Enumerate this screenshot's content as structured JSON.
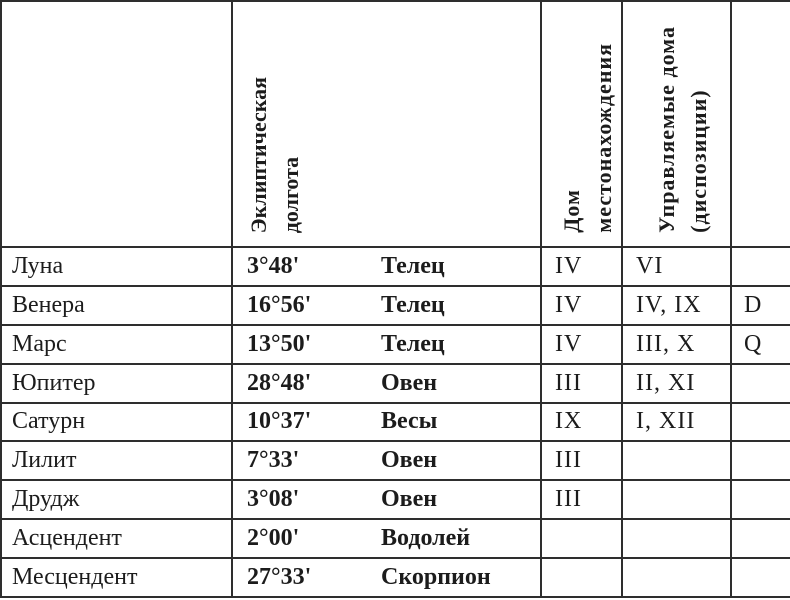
{
  "table": {
    "colors": {
      "border": "#2e2e2e",
      "text": "#1c1c1c",
      "background": "#ffffff"
    },
    "columns": [
      {
        "id": "name",
        "header": ""
      },
      {
        "id": "longitude",
        "header": "Эклиптическая\nдолгота"
      },
      {
        "id": "house",
        "header": "Дом\nместонахождения"
      },
      {
        "id": "ruled",
        "header": "Управляемые дома\n(диспозиции)"
      },
      {
        "id": "dignity",
        "header": ""
      }
    ],
    "rows": [
      {
        "name": "Луна",
        "longitude": "3°48'",
        "sign": "Телец",
        "house": "IV",
        "ruled": "VI",
        "dignity": ""
      },
      {
        "name": "Венера",
        "longitude": "16°56'",
        "sign": "Телец",
        "house": "IV",
        "ruled": "IV, IX",
        "dignity": "D"
      },
      {
        "name": "Марс",
        "longitude": "13°50'",
        "sign": "Телец",
        "house": "IV",
        "ruled": "III, X",
        "dignity": "Q"
      },
      {
        "name": "Юпитер",
        "longitude": "28°48'",
        "sign": "Овен",
        "house": "III",
        "ruled": "II, XI",
        "dignity": ""
      },
      {
        "name": "Сатурн",
        "longitude": "10°37'",
        "sign": "Весы",
        "house": "IX",
        "ruled": "I, XII",
        "dignity": ""
      },
      {
        "name": "Лилит",
        "longitude": "7°33'",
        "sign": "Овен",
        "house": "III",
        "ruled": "",
        "dignity": ""
      },
      {
        "name": "Друдж",
        "longitude": "3°08'",
        "sign": "Овен",
        "house": "III",
        "ruled": "",
        "dignity": ""
      },
      {
        "name": "Асцендент",
        "longitude": "2°00'",
        "sign": "Водолей",
        "house": "",
        "ruled": "",
        "dignity": ""
      },
      {
        "name": "Месцендент",
        "longitude": "27°33'",
        "sign": "Скорпион",
        "house": "",
        "ruled": "",
        "dignity": ""
      }
    ]
  }
}
